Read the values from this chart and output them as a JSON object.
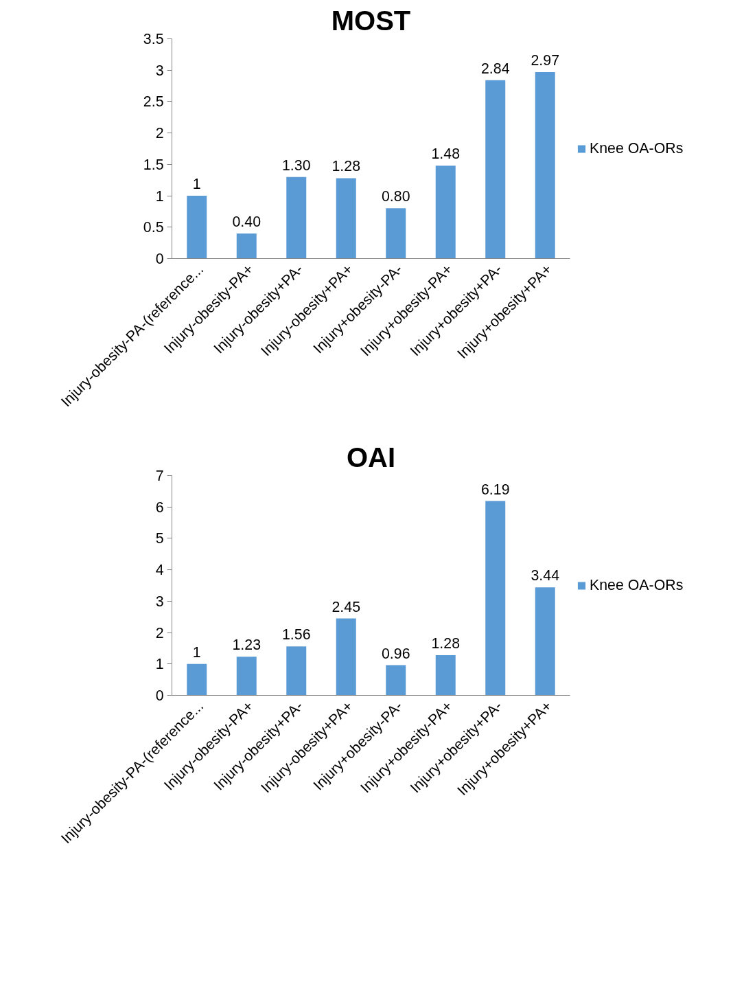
{
  "chart_data": [
    {
      "type": "bar",
      "title": "MOST",
      "categories": [
        "Injury-obesity-PA-(reference...",
        "Injury-obesity-PA+",
        "Injury-obesity+PA-",
        "Injury-obesity+PA+",
        "Injury+obesity-PA-",
        "Injury+obesity-PA+",
        "Injury+obesity+PA-",
        "Injury+obesity+PA+"
      ],
      "series": [
        {
          "name": "Knee OA-ORs",
          "color": "#5b9bd5",
          "values": [
            1,
            0.4,
            1.3,
            1.28,
            0.8,
            1.48,
            2.84,
            2.97
          ],
          "value_labels": [
            "1",
            "0.40",
            "1.30",
            "1.28",
            "0.80",
            "1.48",
            "2.84",
            "2.97"
          ]
        }
      ],
      "ylim": [
        0,
        3.5
      ],
      "yticks": [
        0,
        0.5,
        1,
        1.5,
        2,
        2.5,
        3,
        3.5
      ],
      "grid": false,
      "legend": "right"
    },
    {
      "type": "bar",
      "title": "OAI",
      "categories": [
        "Injury-obesity-PA-(reference...",
        "Injury-obesity-PA+",
        "Injury-obesity+PA-",
        "Injury-obesity+PA+",
        "Injury+obesity-PA-",
        "Injury+obesity-PA+",
        "Injury+obesity+PA-",
        "Injury+obesity+PA+"
      ],
      "series": [
        {
          "name": "Knee OA-ORs",
          "color": "#5b9bd5",
          "values": [
            1,
            1.23,
            1.56,
            2.45,
            0.96,
            1.28,
            6.19,
            3.44
          ],
          "value_labels": [
            "1",
            "1.23",
            "1.56",
            "2.45",
            "0.96",
            "1.28",
            "6.19",
            "3.44"
          ]
        }
      ],
      "ylim": [
        0,
        7
      ],
      "yticks": [
        0,
        1,
        2,
        3,
        4,
        5,
        6,
        7
      ],
      "grid": false,
      "legend": "right"
    }
  ]
}
